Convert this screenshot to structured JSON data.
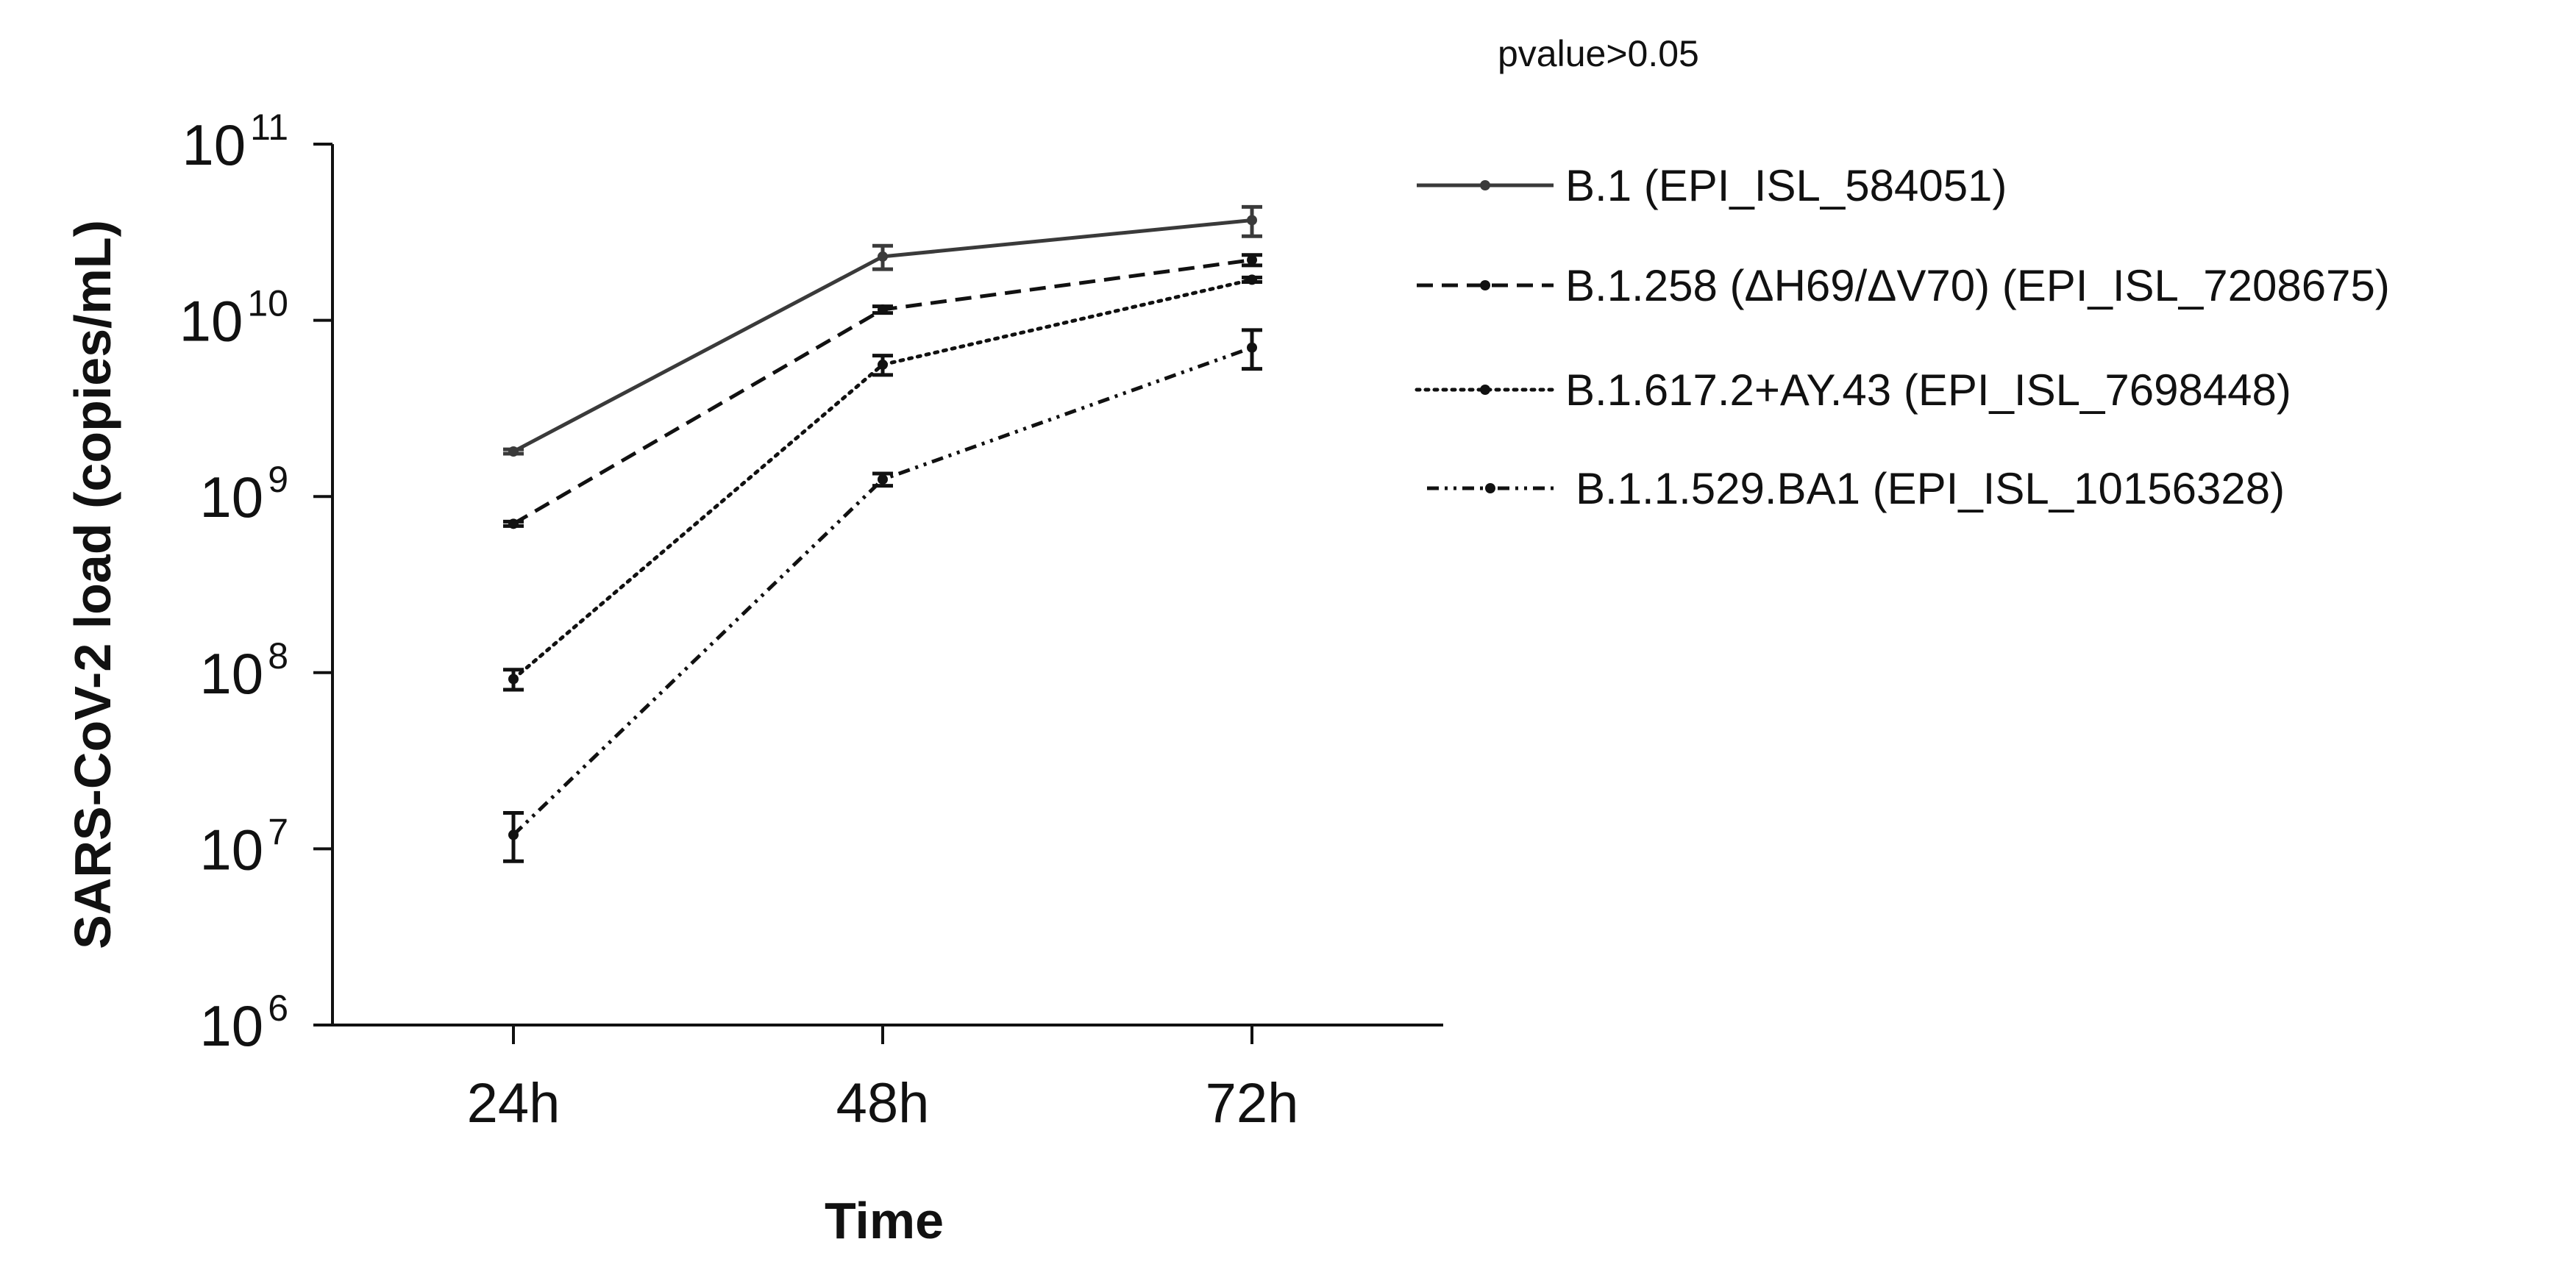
{
  "chart_data": {
    "type": "line",
    "y_scale": "log10",
    "ylim": [
      1000000,
      100000000000
    ],
    "y_ticks": [
      {
        "base": "10",
        "exp": "6"
      },
      {
        "base": "10",
        "exp": "7"
      },
      {
        "base": "10",
        "exp": "8"
      },
      {
        "base": "10",
        "exp": "9"
      },
      {
        "base": "10",
        "exp": "10"
      },
      {
        "base": "10",
        "exp": "11"
      }
    ],
    "categories": [
      "24h",
      "48h",
      "72h"
    ],
    "xlabel": "Time",
    "ylabel": "SARS-CoV-2 load (copies/mL)",
    "annotation": "pvalue>0.05",
    "legend_position": "right",
    "grid": false,
    "series": [
      {
        "name": "B.1 (EPI_ISL_584051)",
        "line_style": "solid",
        "color": "#3a3a3a",
        "values": [
          1800000000,
          23000000000,
          37000000000
        ],
        "errors": [
          [
            1750000000,
            1850000000
          ],
          [
            19500000000,
            26500000000
          ],
          [
            30000000000,
            44000000000
          ]
        ]
      },
      {
        "name": "B.1.258 (ΔH69/ΔV70) (EPI_ISL_7208675)",
        "line_style": "dashed",
        "color": "#111111",
        "values": [
          700000000,
          11500000000,
          22000000000
        ],
        "errors": [
          [
            680000000,
            720000000
          ],
          [
            11000000000,
            12000000000
          ],
          [
            20500000000,
            23500000000
          ]
        ]
      },
      {
        "name": "B.1.617.2+AY.43 (EPI_ISL_7698448)",
        "line_style": "dotted",
        "color": "#111111",
        "values": [
          92000000,
          5600000000,
          17000000000
        ],
        "errors": [
          [
            80000000,
            104000000
          ],
          [
            4900000000,
            6300000000
          ],
          [
            16500000000,
            17500000000
          ]
        ]
      },
      {
        "name": "B.1.1.529.BA1 (EPI_ISL_10156328)",
        "line_style": "dashdotdot",
        "color": "#111111",
        "values": [
          12000000,
          1250000000,
          7000000000
        ],
        "errors": [
          [
            8500000,
            16000000
          ],
          [
            1150000000,
            1350000000
          ],
          [
            5300000000,
            8800000000
          ]
        ]
      }
    ]
  }
}
